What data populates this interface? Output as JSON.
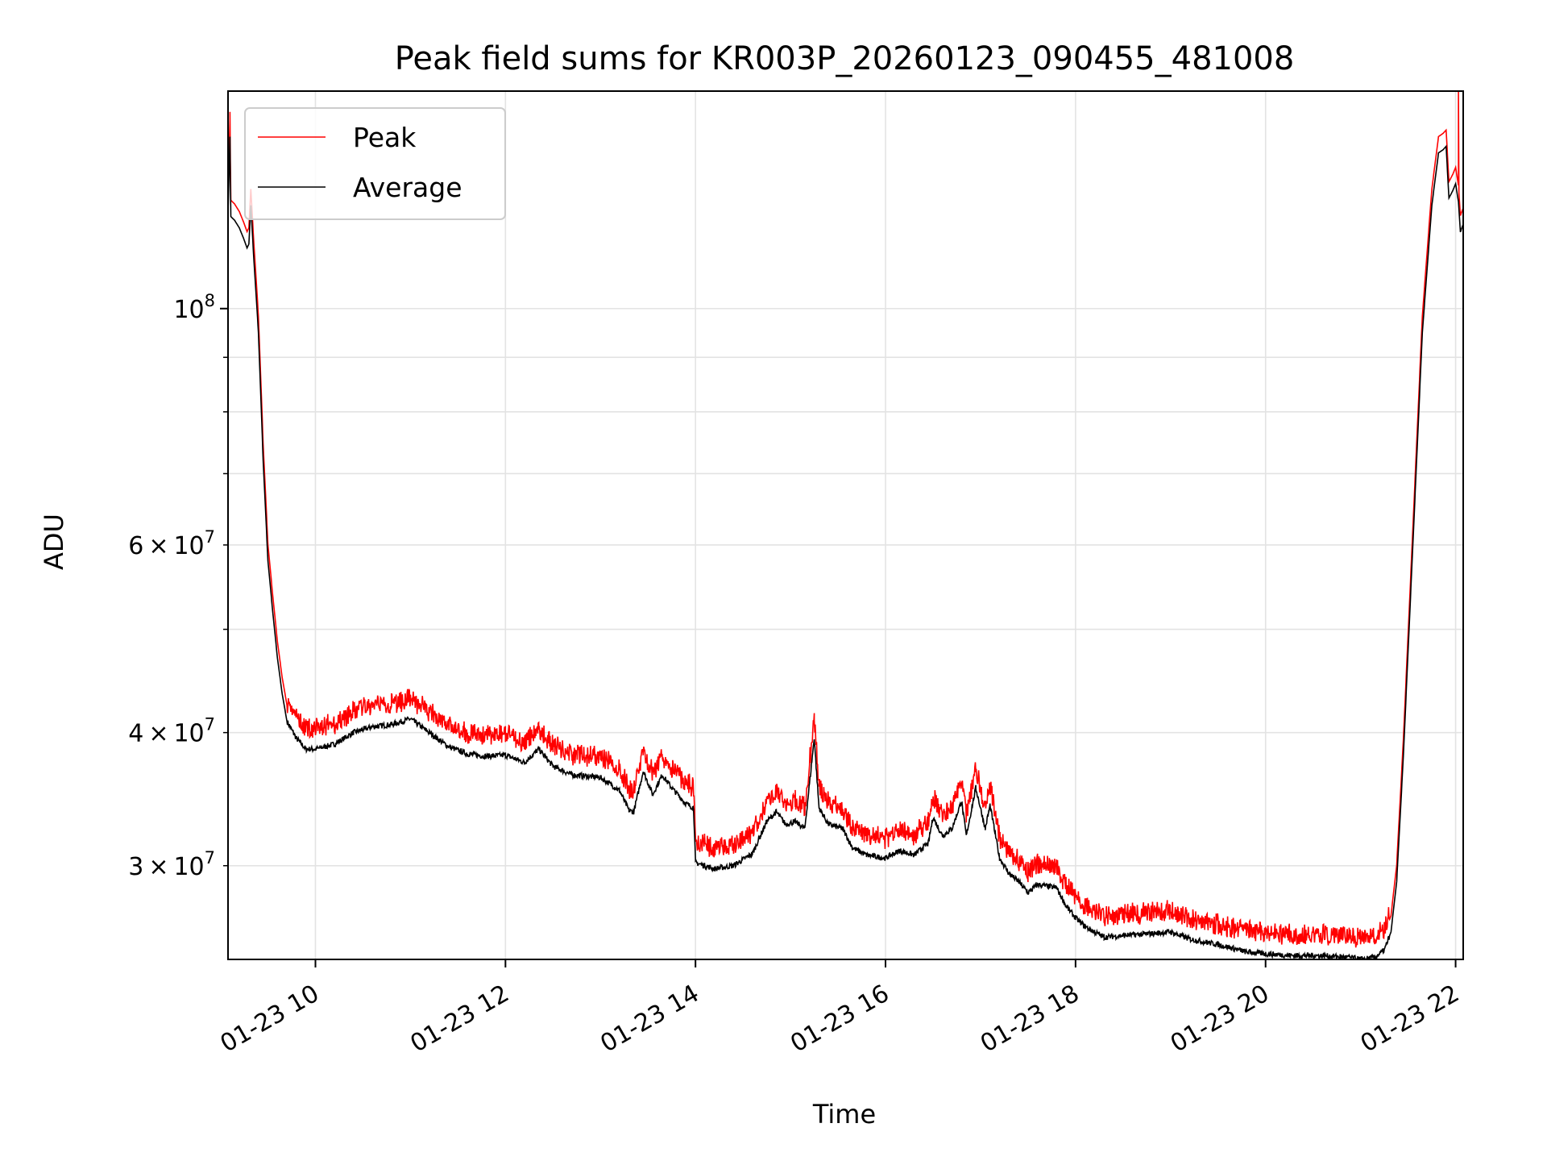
{
  "chart_data": {
    "type": "line",
    "title": "Peak field sums for KR003P_20260123_090455_481008",
    "xlabel": "Time",
    "ylabel": "ADU",
    "x_unit": "hours since 2026-01-23 00:00",
    "xlim": [
      9.08,
      22.08
    ],
    "ylim": [
      24500000,
      160000000
    ],
    "yscale": "log",
    "grid": true,
    "legend_position": "top-left",
    "x_ticks": [
      {
        "value": 10,
        "label": "01-23 10"
      },
      {
        "value": 12,
        "label": "01-23 12"
      },
      {
        "value": 14,
        "label": "01-23 14"
      },
      {
        "value": 16,
        "label": "01-23 16"
      },
      {
        "value": 18,
        "label": "01-23 18"
      },
      {
        "value": 20,
        "label": "01-23 20"
      },
      {
        "value": 22,
        "label": "01-23 22"
      }
    ],
    "y_major_ticks": [
      {
        "value": 100000000,
        "base": "10",
        "exp": "8"
      }
    ],
    "y_minor_ticks": [
      {
        "value": 30000000,
        "mant": "3",
        "base": "10",
        "exp": "7"
      },
      {
        "value": 40000000,
        "mant": "4",
        "base": "10",
        "exp": "7"
      },
      {
        "value": 50000000
      },
      {
        "value": 60000000,
        "mant": "6",
        "base": "10",
        "exp": "7"
      },
      {
        "value": 70000000
      },
      {
        "value": 80000000
      },
      {
        "value": 90000000
      }
    ],
    "multiply_sign": "×",
    "series": [
      {
        "name": "Peak",
        "color": "#ff0000",
        "offset_factor": 1.0
      },
      {
        "name": "Average",
        "color": "#000000",
        "offset_factor": 0.975
      }
    ],
    "average_points": [
      [
        9.08,
        123000000
      ],
      [
        9.1,
        145000000
      ],
      [
        9.11,
        122000000
      ],
      [
        9.15,
        121000000
      ],
      [
        9.2,
        119000000
      ],
      [
        9.25,
        116000000
      ],
      [
        9.28,
        114000000
      ],
      [
        9.3,
        115000000
      ],
      [
        9.32,
        125000000
      ],
      [
        9.35,
        112000000
      ],
      [
        9.4,
        95000000
      ],
      [
        9.45,
        72000000
      ],
      [
        9.5,
        58000000
      ],
      [
        9.55,
        52000000
      ],
      [
        9.6,
        47000000
      ],
      [
        9.65,
        43500000
      ],
      [
        9.7,
        41000000
      ],
      [
        9.8,
        39500000
      ],
      [
        9.9,
        38600000
      ],
      [
        10.0,
        38600000
      ],
      [
        10.2,
        39000000
      ],
      [
        10.4,
        40000000
      ],
      [
        10.6,
        40500000
      ],
      [
        10.8,
        40700000
      ],
      [
        11.0,
        41200000
      ],
      [
        11.2,
        40000000
      ],
      [
        11.4,
        38800000
      ],
      [
        11.6,
        38200000
      ],
      [
        11.8,
        38000000
      ],
      [
        12.0,
        38100000
      ],
      [
        12.2,
        37500000
      ],
      [
        12.35,
        38600000
      ],
      [
        12.5,
        37200000
      ],
      [
        12.7,
        36500000
      ],
      [
        13.0,
        36300000
      ],
      [
        13.2,
        35300000
      ],
      [
        13.3,
        33800000
      ],
      [
        13.35,
        33700000
      ],
      [
        13.45,
        36800000
      ],
      [
        13.55,
        35000000
      ],
      [
        13.65,
        36500000
      ],
      [
        13.75,
        35500000
      ],
      [
        13.9,
        34300000
      ],
      [
        13.98,
        34000000
      ],
      [
        14.0,
        30200000
      ],
      [
        14.2,
        29800000
      ],
      [
        14.4,
        30000000
      ],
      [
        14.6,
        30800000
      ],
      [
        14.75,
        33000000
      ],
      [
        14.85,
        33700000
      ],
      [
        14.95,
        32800000
      ],
      [
        15.05,
        33000000
      ],
      [
        15.15,
        32500000
      ],
      [
        15.25,
        39500000
      ],
      [
        15.3,
        34000000
      ],
      [
        15.4,
        32800000
      ],
      [
        15.55,
        32500000
      ],
      [
        15.65,
        31200000
      ],
      [
        15.8,
        30700000
      ],
      [
        16.0,
        30500000
      ],
      [
        16.15,
        31000000
      ],
      [
        16.3,
        30700000
      ],
      [
        16.45,
        31500000
      ],
      [
        16.5,
        33300000
      ],
      [
        16.6,
        32000000
      ],
      [
        16.7,
        32500000
      ],
      [
        16.8,
        34500000
      ],
      [
        16.85,
        32000000
      ],
      [
        16.95,
        35500000
      ],
      [
        17.05,
        32500000
      ],
      [
        17.1,
        34200000
      ],
      [
        17.2,
        30500000
      ],
      [
        17.3,
        29500000
      ],
      [
        17.4,
        29000000
      ],
      [
        17.5,
        28300000
      ],
      [
        17.6,
        28800000
      ],
      [
        17.8,
        28600000
      ],
      [
        17.9,
        27500000
      ],
      [
        18.0,
        26800000
      ],
      [
        18.1,
        26300000
      ],
      [
        18.3,
        25700000
      ],
      [
        18.5,
        25800000
      ],
      [
        18.8,
        25900000
      ],
      [
        19.0,
        26000000
      ],
      [
        19.2,
        25600000
      ],
      [
        19.5,
        25300000
      ],
      [
        19.8,
        24900000
      ],
      [
        20.0,
        24800000
      ],
      [
        20.3,
        24700000
      ],
      [
        20.6,
        24700000
      ],
      [
        20.9,
        24600000
      ],
      [
        21.0,
        24500000
      ],
      [
        21.15,
        24600000
      ],
      [
        21.25,
        25000000
      ],
      [
        21.32,
        26000000
      ],
      [
        21.38,
        29000000
      ],
      [
        21.45,
        38000000
      ],
      [
        21.55,
        60000000
      ],
      [
        21.65,
        95000000
      ],
      [
        21.75,
        125000000
      ],
      [
        21.82,
        140000000
      ],
      [
        21.87,
        141000000
      ],
      [
        21.9,
        142000000
      ],
      [
        21.93,
        127000000
      ],
      [
        21.97,
        129000000
      ],
      [
        22.0,
        131000000
      ],
      [
        22.03,
        126000000
      ],
      [
        22.05,
        118000000
      ],
      [
        22.08,
        120000000
      ]
    ],
    "peak_extra_spikes": [
      [
        22.03,
        160000000
      ],
      [
        9.1,
        153000000
      ]
    ]
  }
}
